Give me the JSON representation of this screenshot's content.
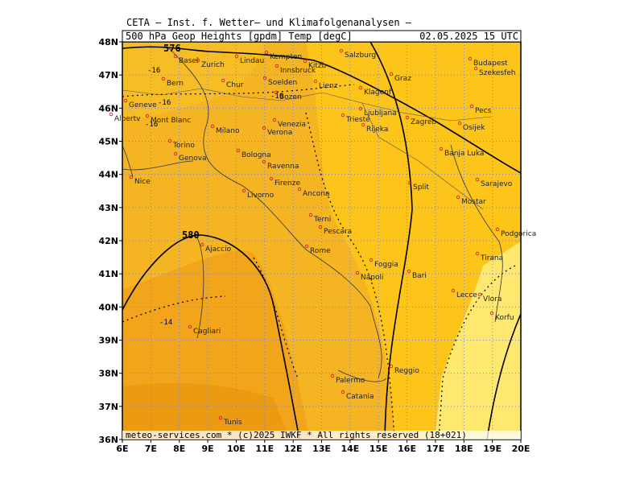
{
  "header": {
    "title": "CETA — Inst. f. Wetter— und Klimafolgenanalysen —",
    "field": "500 hPa Geop Heights [gpdm] Temp [degC]",
    "valid": "02.05.2025 15 UTC"
  },
  "footer": "meteo-services.com * (c)2025 IWKF * All rights reserved (18+021)",
  "lat_labels": [
    "48N",
    "47N",
    "46N",
    "45N",
    "44N",
    "43N",
    "42N",
    "41N",
    "40N",
    "39N",
    "38N",
    "37N",
    "36N"
  ],
  "lon_labels": [
    "6E",
    "7E",
    "8E",
    "9E",
    "10E",
    "11E",
    "12E",
    "13E",
    "14E",
    "15E",
    "16E",
    "17E",
    "18E",
    "19E",
    "20E"
  ],
  "contour_labels": [
    "576",
    "580"
  ],
  "temp_labels": [
    "-16",
    "-16",
    "-16",
    "-16",
    "-14"
  ],
  "cities": [
    "Basel",
    "Zurich",
    "Lindau",
    "Kempten",
    "Salzburg",
    "Budapest",
    "Szekesfeh",
    "Innsbruck",
    "Kitzb",
    "Bern",
    "Chur",
    "Soelden",
    "Lienz",
    "Graz",
    "Geneve",
    "Bozen",
    "Klagenf",
    "Pecs",
    "Ljubljana",
    "Albertv",
    "Mont Blanc",
    "Venezia",
    "Verona",
    "Milano",
    "Trieste",
    "Rijeka",
    "Zagreb",
    "Osijek",
    "Torino",
    "Genova",
    "Bologna",
    "Ravenna",
    "Banja Luka",
    "Nice",
    "Firenze",
    "Livorno",
    "Ancona",
    "Split",
    "Sarajevo",
    "Mostar",
    "Terni",
    "Pescara",
    "Podgorica",
    "Ajaccio",
    "Rome",
    "Foggia",
    "Tirana",
    "Bari",
    "Napoli",
    "Lecce",
    "Vlora",
    "Korfu",
    "Cagliari",
    "Palermo",
    "Reggio",
    "Catania",
    "Tunis"
  ]
}
